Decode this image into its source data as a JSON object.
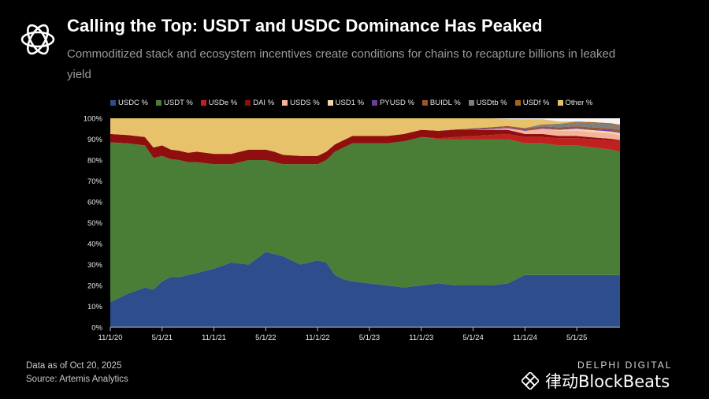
{
  "header": {
    "title": "Calling the Top: USDT and USDC Dominance Has Peaked",
    "subtitle": "Commoditized stack and ecosystem incentives create conditions for chains to recapture billions in leaked yield"
  },
  "footer": {
    "date_note": "Data as of Oct 20, 2025",
    "source_note": "Source: Artemis Analytics",
    "brand": "DELPHI DIGITAL",
    "watermark": "律动BlockBeats"
  },
  "chart_data": {
    "type": "area",
    "stacked": true,
    "percent": true,
    "ylim": [
      0,
      100
    ],
    "yticks": [
      0,
      10,
      20,
      30,
      40,
      50,
      60,
      70,
      80,
      90,
      100
    ],
    "ytick_labels": [
      "0%",
      "10%",
      "20%",
      "30%",
      "40%",
      "50%",
      "60%",
      "70%",
      "80%",
      "90%",
      "100%"
    ],
    "x_months": [
      0,
      2,
      4,
      5,
      6,
      7,
      8,
      9,
      10,
      12,
      14,
      16,
      18,
      19,
      20,
      22,
      24,
      25,
      26,
      27,
      28,
      30,
      32,
      34,
      36,
      38,
      40,
      42,
      44,
      46,
      48,
      50,
      52,
      54,
      56,
      58,
      59
    ],
    "x_tick_positions": [
      0,
      6,
      12,
      18,
      24,
      30,
      36,
      42,
      48,
      54
    ],
    "x_tick_labels": [
      "11/1/20",
      "5/1/21",
      "11/1/21",
      "5/1/22",
      "11/1/22",
      "5/1/23",
      "11/1/23",
      "5/1/24",
      "11/1/24",
      "5/1/25"
    ],
    "series": [
      {
        "name": "USDC %",
        "color": "#2e4d8c",
        "values": [
          12,
          16,
          19,
          18,
          22,
          24,
          24,
          25,
          26,
          28,
          31,
          30,
          36,
          35,
          34,
          30,
          32,
          31,
          25,
          23,
          22,
          21,
          20,
          19,
          20,
          21,
          20,
          20,
          20,
          21,
          25,
          25,
          25,
          25,
          25,
          25,
          25
        ]
      },
      {
        "name": "USDT %",
        "color": "#4a7d35",
        "values": [
          76.5,
          72,
          68,
          63,
          60,
          56.5,
          56,
          54,
          53,
          50,
          47,
          50,
          44,
          44,
          44,
          48,
          46,
          49,
          59,
          63,
          66,
          67,
          68,
          70,
          71,
          69,
          70,
          70,
          70,
          69,
          63,
          63,
          62,
          62,
          61,
          60,
          59
        ]
      },
      {
        "name": "USDe %",
        "color": "#c0201e",
        "values": [
          0,
          0,
          0,
          0,
          0,
          0,
          0,
          0,
          0,
          0,
          0,
          0,
          0,
          0,
          0,
          0,
          0,
          0,
          0,
          0,
          0,
          0,
          0,
          0,
          0,
          0.5,
          1,
          1.5,
          2,
          2.5,
          3,
          3,
          3.5,
          3.5,
          4,
          4.5,
          5
        ]
      },
      {
        "name": "DAI %",
        "color": "#8f0e0e",
        "values": [
          4,
          4,
          4,
          5,
          5,
          4.5,
          4.5,
          4.5,
          5,
          5,
          5,
          5,
          5,
          5,
          4.5,
          4,
          4,
          4,
          3.5,
          3.5,
          3.5,
          3.5,
          3.5,
          3.5,
          3.5,
          3.5,
          3.5,
          3,
          2.5,
          2,
          1.5,
          1.5,
          1,
          1,
          0.8,
          0.7,
          0.5
        ]
      },
      {
        "name": "USDS %",
        "color": "#f6b39b",
        "values": [
          0,
          0,
          0,
          0,
          0,
          0,
          0,
          0,
          0,
          0,
          0,
          0,
          0,
          0,
          0,
          0,
          0,
          0,
          0,
          0,
          0,
          0,
          0,
          0,
          0,
          0,
          0,
          0,
          0.3,
          0.8,
          1.5,
          2.5,
          2.5,
          2.5,
          2.5,
          2.5,
          2.5
        ]
      },
      {
        "name": "USD1 %",
        "color": "#f2d6a6",
        "values": [
          0,
          0,
          0,
          0,
          0,
          0,
          0,
          0,
          0,
          0,
          0,
          0,
          0,
          0,
          0,
          0,
          0,
          0,
          0,
          0,
          0,
          0,
          0,
          0,
          0,
          0,
          0,
          0,
          0,
          0,
          0,
          0,
          0.5,
          1,
          1,
          1,
          1
        ]
      },
      {
        "name": "PYUSD %",
        "color": "#6a3d9a",
        "values": [
          0,
          0,
          0,
          0,
          0,
          0,
          0,
          0,
          0,
          0,
          0,
          0,
          0,
          0,
          0,
          0,
          0,
          0,
          0,
          0,
          0,
          0,
          0,
          0,
          0,
          0,
          0.2,
          0.4,
          0.4,
          0.4,
          0.4,
          0.4,
          0.4,
          0.4,
          0.5,
          0.6,
          0.6
        ]
      },
      {
        "name": "BUIDL %",
        "color": "#a0522d",
        "values": [
          0,
          0,
          0,
          0,
          0,
          0,
          0,
          0,
          0,
          0,
          0,
          0,
          0,
          0,
          0,
          0,
          0,
          0,
          0,
          0,
          0,
          0,
          0,
          0,
          0,
          0,
          0,
          0.3,
          0.5,
          0.6,
          0.7,
          0.7,
          0.8,
          0.8,
          0.8,
          0.8,
          0.8
        ]
      },
      {
        "name": "USDtb %",
        "color": "#7f7f7f",
        "values": [
          0,
          0,
          0,
          0,
          0,
          0,
          0,
          0,
          0,
          0,
          0,
          0,
          0,
          0,
          0,
          0,
          0,
          0,
          0,
          0,
          0,
          0,
          0,
          0,
          0,
          0,
          0,
          0,
          0,
          0,
          0.3,
          1,
          1.5,
          1.8,
          2,
          2,
          2
        ]
      },
      {
        "name": "USDf %",
        "color": "#a5651c",
        "values": [
          0,
          0,
          0,
          0,
          0,
          0,
          0,
          0,
          0,
          0,
          0,
          0,
          0,
          0,
          0,
          0,
          0,
          0,
          0,
          0,
          0,
          0,
          0,
          0,
          0,
          0,
          0,
          0,
          0,
          0,
          0,
          0,
          0.2,
          0.4,
          0.5,
          0.5,
          0.5
        ]
      },
      {
        "name": "Other  %",
        "color": "#e7c26a",
        "values": [
          7.5,
          8,
          9,
          14,
          13,
          15,
          15.5,
          16.5,
          16,
          17,
          17,
          15,
          15,
          16,
          17.5,
          18,
          18,
          16,
          12.5,
          10.5,
          8.5,
          8.5,
          8.5,
          7.5,
          5.5,
          6,
          5.3,
          4.8,
          4.3,
          3.3,
          4.1,
          2.4,
          1.1,
          0.1,
          0,
          0,
          0
        ]
      }
    ]
  }
}
